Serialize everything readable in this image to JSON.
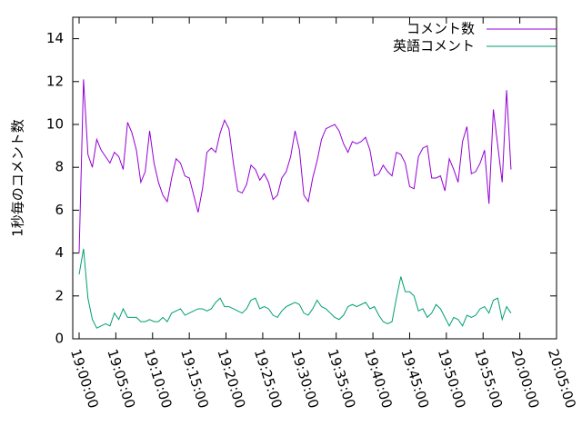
{
  "chart_data": {
    "type": "line",
    "ylabel": "1秒毎のコメント数",
    "x": [
      68400,
      68436,
      68472,
      68508,
      68544,
      68580,
      68616,
      68652,
      68688,
      68724,
      68760,
      68796,
      68832,
      68868,
      68904,
      68940,
      68976,
      69012,
      69048,
      69084,
      69120,
      69156,
      69192,
      69228,
      69264,
      69300,
      69336,
      69372,
      69408,
      69444,
      69480,
      69516,
      69552,
      69588,
      69624,
      69660,
      69696,
      69732,
      69768,
      69804,
      69840,
      69876,
      69912,
      69948,
      69984,
      70020,
      70056,
      70092,
      70128,
      70164,
      70200,
      70236,
      70272,
      70308,
      70344,
      70380,
      70416,
      70452,
      70488,
      70524,
      70560,
      70596,
      70632,
      70668,
      70704,
      70740,
      70776,
      70812,
      70848,
      70884,
      70920,
      70956,
      70992,
      71028,
      71064,
      71100,
      71136,
      71172,
      71208,
      71244,
      71280,
      71316,
      71352,
      71388,
      71424,
      71460,
      71496,
      71532,
      71568,
      71604,
      71640,
      71676,
      71712,
      71748,
      71784,
      71820,
      71856,
      71892,
      71928
    ],
    "series": [
      {
        "name": "コメント数",
        "color": "#9400d3",
        "values": [
          4.0,
          12.1,
          8.6,
          8.0,
          9.3,
          8.8,
          8.5,
          8.2,
          8.7,
          8.5,
          7.9,
          10.1,
          9.6,
          8.8,
          7.3,
          7.8,
          9.7,
          8.2,
          7.3,
          6.7,
          6.4,
          7.5,
          8.4,
          8.2,
          7.6,
          7.5,
          6.7,
          5.9,
          7.0,
          8.7,
          8.9,
          8.7,
          9.6,
          10.2,
          9.8,
          8.2,
          6.9,
          6.8,
          7.2,
          8.1,
          7.9,
          7.4,
          7.7,
          7.3,
          6.5,
          6.7,
          7.5,
          7.8,
          8.5,
          9.7,
          8.8,
          6.7,
          6.4,
          7.5,
          8.3,
          9.3,
          9.8,
          9.9,
          10.0,
          9.7,
          9.1,
          8.7,
          9.2,
          9.1,
          9.2,
          9.4,
          8.8,
          7.6,
          7.7,
          8.1,
          7.8,
          7.6,
          8.7,
          8.6,
          8.2,
          7.1,
          7.0,
          8.5,
          8.9,
          9.0,
          7.5,
          7.5,
          7.6,
          6.9,
          8.4,
          7.9,
          7.3,
          9.2,
          9.9,
          7.7,
          7.8,
          8.2,
          8.8,
          6.3,
          10.7,
          9.0,
          7.3,
          11.6,
          7.9
        ]
      },
      {
        "name": "英語コメント",
        "color": "#009e73",
        "values": [
          3.0,
          4.2,
          1.9,
          0.9,
          0.5,
          0.6,
          0.7,
          0.6,
          1.2,
          0.9,
          1.4,
          1.0,
          1.0,
          1.0,
          0.8,
          0.8,
          0.9,
          0.8,
          0.8,
          1.0,
          0.8,
          1.2,
          1.3,
          1.4,
          1.1,
          1.2,
          1.3,
          1.4,
          1.4,
          1.3,
          1.4,
          1.7,
          1.9,
          1.5,
          1.5,
          1.4,
          1.3,
          1.2,
          1.4,
          1.8,
          1.9,
          1.4,
          1.5,
          1.4,
          1.1,
          1.0,
          1.3,
          1.5,
          1.6,
          1.7,
          1.6,
          1.2,
          1.1,
          1.4,
          1.8,
          1.5,
          1.4,
          1.2,
          1.0,
          0.9,
          1.1,
          1.5,
          1.6,
          1.5,
          1.6,
          1.7,
          1.4,
          1.5,
          1.1,
          0.8,
          0.7,
          0.8,
          1.9,
          2.9,
          2.2,
          2.2,
          2.0,
          1.3,
          1.4,
          1.0,
          1.2,
          1.6,
          1.4,
          1.0,
          0.6,
          1.0,
          0.9,
          0.6,
          1.1,
          1.0,
          1.1,
          1.4,
          1.5,
          1.2,
          1.8,
          1.9,
          0.9,
          1.5,
          1.2
        ]
      }
    ],
    "xlim": [
      68348,
      72300
    ],
    "xticks": [
      {
        "value": 68400,
        "label": "19:00:00"
      },
      {
        "value": 68700,
        "label": "19:05:00"
      },
      {
        "value": 69000,
        "label": "19:10:00"
      },
      {
        "value": 69300,
        "label": "19:15:00"
      },
      {
        "value": 69600,
        "label": "19:20:00"
      },
      {
        "value": 69900,
        "label": "19:25:00"
      },
      {
        "value": 70200,
        "label": "19:30:00"
      },
      {
        "value": 70500,
        "label": "19:35:00"
      },
      {
        "value": 70800,
        "label": "19:40:00"
      },
      {
        "value": 71100,
        "label": "19:45:00"
      },
      {
        "value": 71400,
        "label": "19:50:00"
      },
      {
        "value": 71700,
        "label": "19:55:00"
      },
      {
        "value": 72000,
        "label": "20:00:00"
      },
      {
        "value": 72300,
        "label": "20:05:00"
      }
    ],
    "ylim": [
      0,
      15
    ],
    "yticks": [
      0,
      2,
      4,
      6,
      8,
      10,
      12,
      14
    ],
    "legend": "top-right"
  }
}
